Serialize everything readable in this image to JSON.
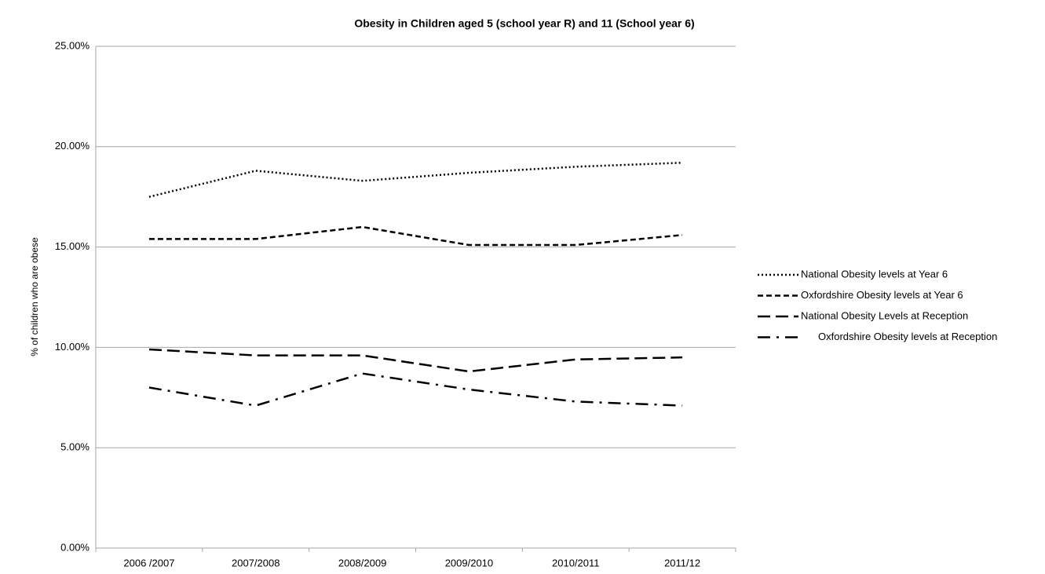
{
  "chart_data": {
    "type": "line",
    "title": "Obesity in Children aged 5 (school year R) and 11 (School year 6)",
    "y_label": "% of children who are obese",
    "categories": [
      "2006 /2007",
      "2007/2008",
      "2008/2009",
      "2009/2010",
      "2010/2011",
      "2011/12"
    ],
    "series": [
      {
        "name": "National Obesity levels at Year 6",
        "color": "#000000",
        "dash": "dotted",
        "values": [
          17.5,
          18.8,
          18.3,
          18.7,
          19.0,
          19.2
        ]
      },
      {
        "name": "Oxfordshire Obesity levels at Year 6",
        "color": "#000000",
        "dash": "dashed",
        "values": [
          15.4,
          15.4,
          16.0,
          15.1,
          15.1,
          15.6
        ]
      },
      {
        "name": "National Obesity Levels at Reception",
        "color": "#000000",
        "dash": "long-dash",
        "values": [
          9.9,
          9.6,
          9.6,
          8.8,
          9.4,
          9.5
        ]
      },
      {
        "name": "Oxfordshire Obesity levels at Reception",
        "color": "#000000",
        "dash": "dash-dot",
        "values": [
          8.0,
          7.1,
          8.7,
          7.9,
          7.3,
          7.1
        ]
      }
    ],
    "ylim": [
      0,
      25
    ],
    "yticks": [
      {
        "value": 0,
        "label": "0.00%"
      },
      {
        "value": 5,
        "label": "5.00%"
      },
      {
        "value": 10,
        "label": "10.00%"
      },
      {
        "value": 15,
        "label": "15.00%"
      },
      {
        "value": 20,
        "label": "20.00%"
      },
      {
        "value": 25,
        "label": "25.00%"
      }
    ],
    "grid": true,
    "legend": "right"
  }
}
